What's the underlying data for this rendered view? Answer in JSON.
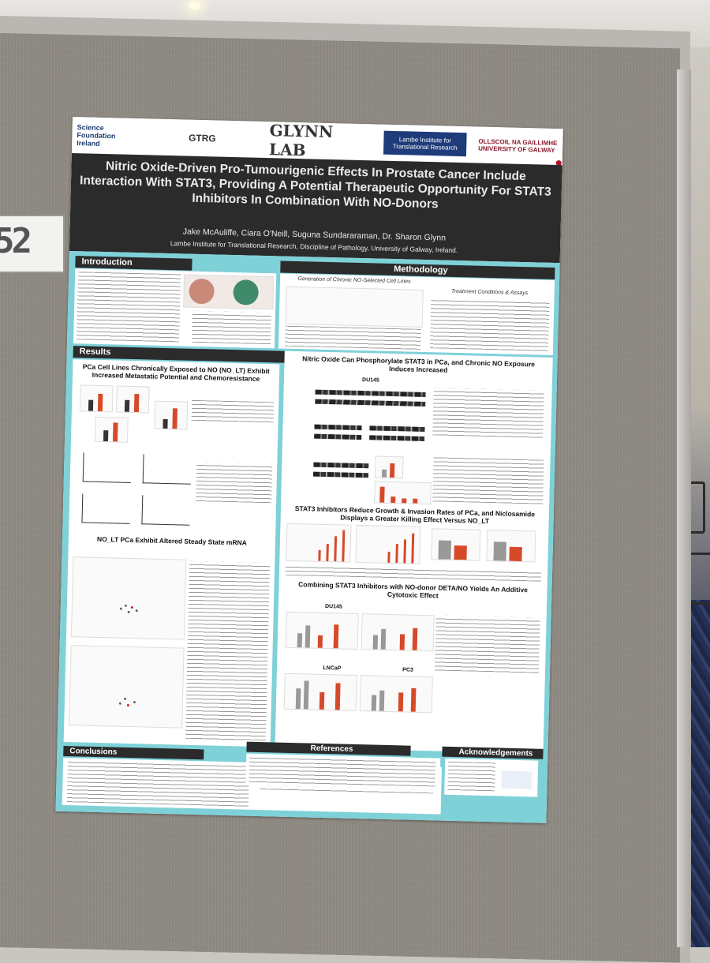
{
  "poster": {
    "logos": {
      "sfi": "Science Foundation Ireland",
      "gtrg": "GTRG",
      "glynn": "GLYNN LAB",
      "lambe": "Lambe Institute for Translational Research",
      "galway": "OLLSCOIL NA GAILLIMHE UNIVERSITY OF GALWAY"
    },
    "title": "Nitric Oxide-Driven Pro-Tumourigenic Effects In Prostate Cancer Include Interaction With STAT3, Providing A Potential Therapeutic Opportunity For STAT3 Inhibitors In Combination With NO-Donors",
    "authors": "Jake McAuliffe, Ciara O'Neill, Suguna Sundararaman, Dr. Sharon Glynn",
    "affiliation": "Lambe Institute for Translational Research, Discipline of Pathology, University of Galway, Ireland.",
    "sections": {
      "introduction": "Introduction",
      "methodology": "Methodology",
      "results": "Results",
      "conclusions": "Conclusions",
      "references": "References",
      "acknowledgements": "Acknowledgements"
    },
    "method_subtitle": "Generation of Chronic NO-Selected Cell Lines",
    "method_subtitle2": "Treatment Conditions & Assays",
    "result_titles": {
      "r1": "PCa Cell Lines Chronically Exposed to NO (NO_LT) Exhibit Increased Metastatic Potential and Chemoresistance",
      "r2": "NO_LT PCa Exhibit Altered Steady State mRNA",
      "r3": "Nitric Oxide Can Phosphorylate STAT3 in PCa, and Chronic NO Exposure Induces Increased",
      "r4": "STAT3 Inhibitors Reduce Growth & Invasion Rates of PCa, and Niclosamide Displays a Greater Killing Effect Versus NO_LT",
      "r5": "Combining STAT3 Inhibitors with NO-donor DETA/NO Yields An Additive Cytotoxic Effect"
    },
    "figure_labels": {
      "du145": "DU145",
      "pc3": "PC3",
      "lncap": "LNCaP"
    },
    "board_tag": "52"
  }
}
